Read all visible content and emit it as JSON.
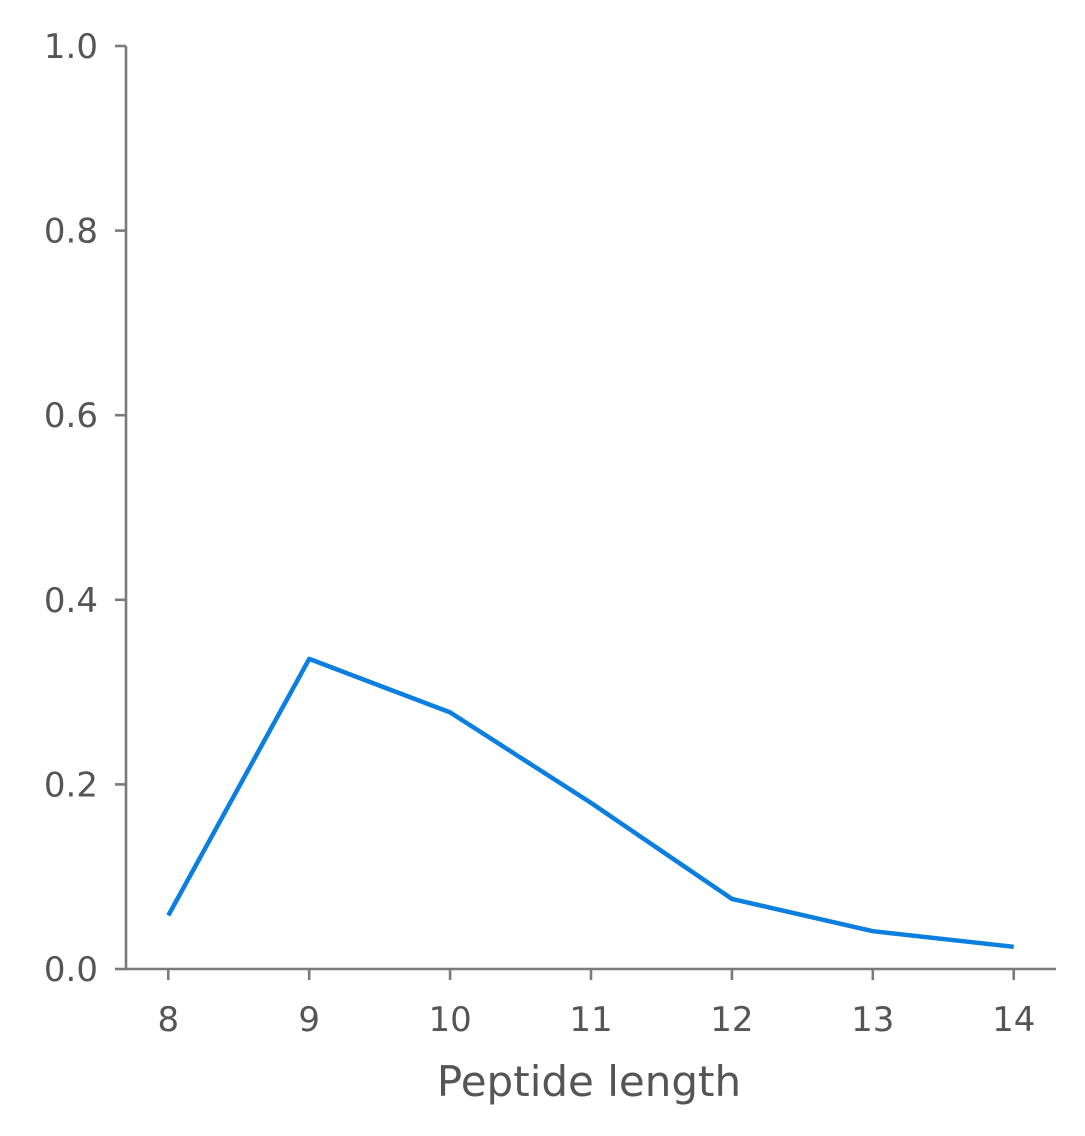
{
  "chart_data": {
    "type": "line",
    "title": "",
    "xlabel": "Peptide length",
    "ylabel": "",
    "x": [
      8,
      9,
      10,
      11,
      12,
      13,
      14
    ],
    "series": [
      {
        "values": [
          0.058,
          0.336,
          0.278,
          0.18,
          0.076,
          0.041,
          0.024
        ],
        "color": "#0a7fe0"
      }
    ],
    "xlim": [
      7.7,
      14.3
    ],
    "ylim": [
      0.0,
      1.0
    ],
    "xticks": [
      "8",
      "9",
      "10",
      "11",
      "12",
      "13",
      "14"
    ],
    "yticks": [
      "0.0",
      "0.2",
      "0.4",
      "0.6",
      "0.8",
      "1.0"
    ],
    "grid": false,
    "legend": "none"
  }
}
